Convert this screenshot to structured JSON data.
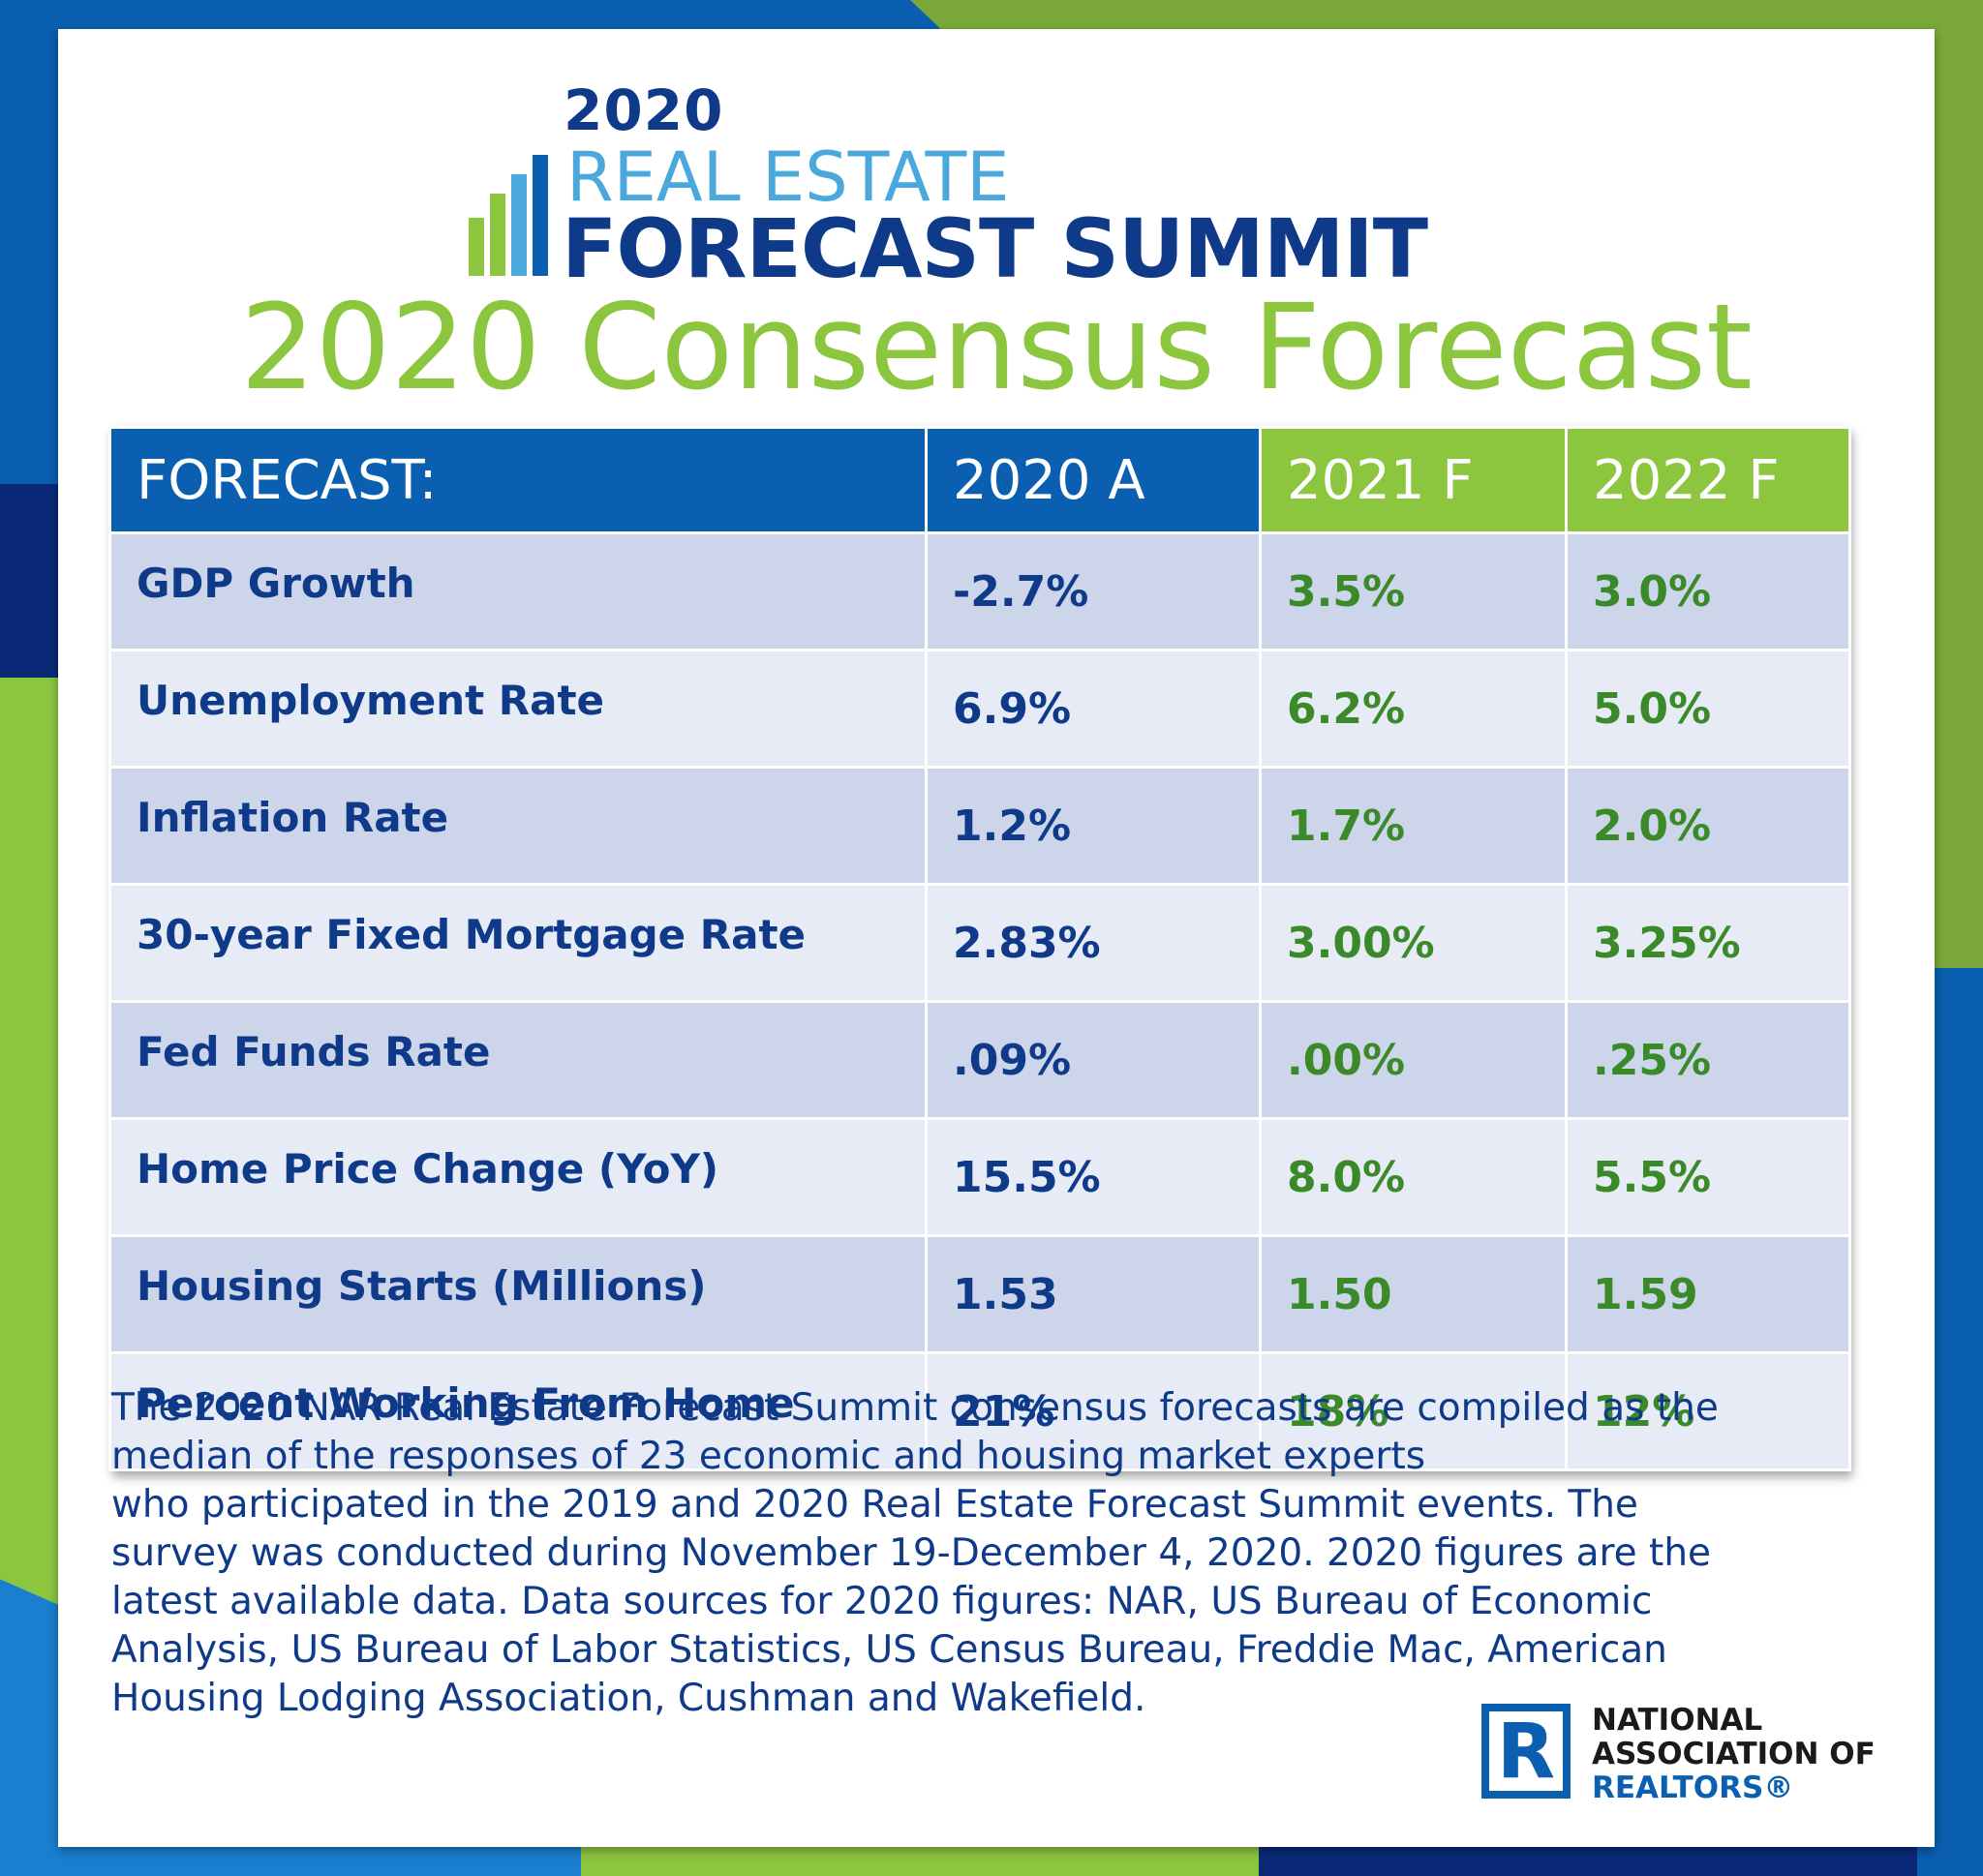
{
  "colors": {
    "navy": "#0f3a8a",
    "blue": "#0a5fb0",
    "light_blue": "#4aa8dd",
    "green": "#8cc63f",
    "dark_green": "#3a8a2a"
  },
  "header": {
    "logo_year": "2020",
    "logo_line1": "REAL ESTATE",
    "logo_line2": "FORECAST SUMMIT",
    "title": "2020 Consensus Forecast"
  },
  "table": {
    "columns": [
      "FORECAST:",
      "2020 A",
      "2021 F",
      "2022 F"
    ],
    "rows": [
      {
        "label": "GDP Growth",
        "v2020": "-2.7%",
        "v2021": "3.5%",
        "v2022": "3.0%"
      },
      {
        "label": "Unemployment Rate",
        "v2020": "6.9%",
        "v2021": "6.2%",
        "v2022": "5.0%"
      },
      {
        "label": "Inflation Rate",
        "v2020": "1.2%",
        "v2021": "1.7%",
        "v2022": "2.0%"
      },
      {
        "label": "30-year Fixed Mortgage Rate",
        "v2020": "2.83%",
        "v2021": "3.00%",
        "v2022": "3.25%"
      },
      {
        "label": "Fed Funds Rate",
        "v2020": ".09%",
        "v2021": ".00%",
        "v2022": ".25%"
      },
      {
        "label": "Home Price Change (YoY)",
        "v2020": "15.5%",
        "v2021": "8.0%",
        "v2022": "5.5%"
      },
      {
        "label": "Housing Starts (Millions)",
        "v2020": "1.53",
        "v2021": "1.50",
        "v2022": "1.59"
      },
      {
        "label": "Percent Working From Home",
        "v2020": "21%",
        "v2021": "18%",
        "v2022": "12%"
      }
    ]
  },
  "footnote": {
    "lines": [
      "The 2020 NAR Real Estate Forecast Summit consensus forecasts are compiled as the",
      "median of the responses of 23 economic and housing market experts",
      "who participated in the 2019 and 2020 Real Estate Forecast Summit events. The",
      "survey was conducted during November 19-December 4, 2020. 2020 figures are the",
      "latest available data. Data sources for 2020 figures:  NAR, US Bureau of Economic",
      "Analysis, US Bureau of Labor Statistics, US Census Bureau, Freddie Mac, American",
      "Housing Lodging Association, Cushman and Wakefield."
    ]
  },
  "nar_logo": {
    "mark": "R",
    "line1": "NATIONAL",
    "line2": "ASSOCIATION OF",
    "line3": "REALTORS®"
  }
}
